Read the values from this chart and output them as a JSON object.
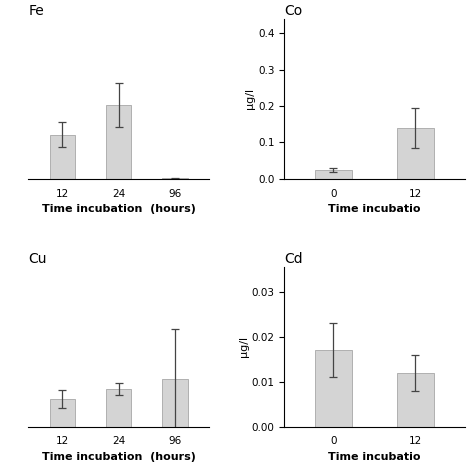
{
  "fe": {
    "title": "Fe",
    "categories": [
      "12",
      "24",
      "96"
    ],
    "values": [
      0.18,
      0.3,
      0.003
    ],
    "errors": [
      0.05,
      0.09,
      0.002
    ],
    "ylabel": "",
    "xlabel": "Time incubation  (hours)",
    "ylim": [
      0,
      0.65
    ],
    "yticks": [],
    "has_yaxis": false
  },
  "co": {
    "title": "Co",
    "categories": [
      "0",
      "12"
    ],
    "values": [
      0.025,
      0.14
    ],
    "errors": [
      0.005,
      0.055
    ],
    "ylabel": "μg/l",
    "xlabel": "Time incubatio",
    "ylim": [
      0,
      0.44
    ],
    "yticks": [
      0.0,
      0.1,
      0.2,
      0.3,
      0.4
    ],
    "has_yaxis": true
  },
  "cu": {
    "title": "Cu",
    "categories": [
      "12",
      "24",
      "96"
    ],
    "values": [
      0.055,
      0.075,
      0.095
    ],
    "errors": [
      0.018,
      0.012,
      0.1
    ],
    "ylabel": "",
    "xlabel": "Time incubation  (hours)",
    "ylim": [
      0,
      0.32
    ],
    "yticks": [],
    "has_yaxis": false
  },
  "cd": {
    "title": "Cd",
    "categories": [
      "0",
      "12"
    ],
    "values": [
      0.017,
      0.012
    ],
    "errors": [
      0.006,
      0.004
    ],
    "ylabel": "μg/l",
    "xlabel": "Time incubatio",
    "ylim": [
      0,
      0.0355
    ],
    "yticks": [
      0.0,
      0.01,
      0.02,
      0.03
    ],
    "has_yaxis": true
  },
  "bar_color": "#d4d4d4",
  "bar_edgecolor": "#999999",
  "error_color": "#444444",
  "background_color": "#ffffff",
  "title_fontsize": 10,
  "label_fontsize": 8,
  "tick_fontsize": 7.5
}
